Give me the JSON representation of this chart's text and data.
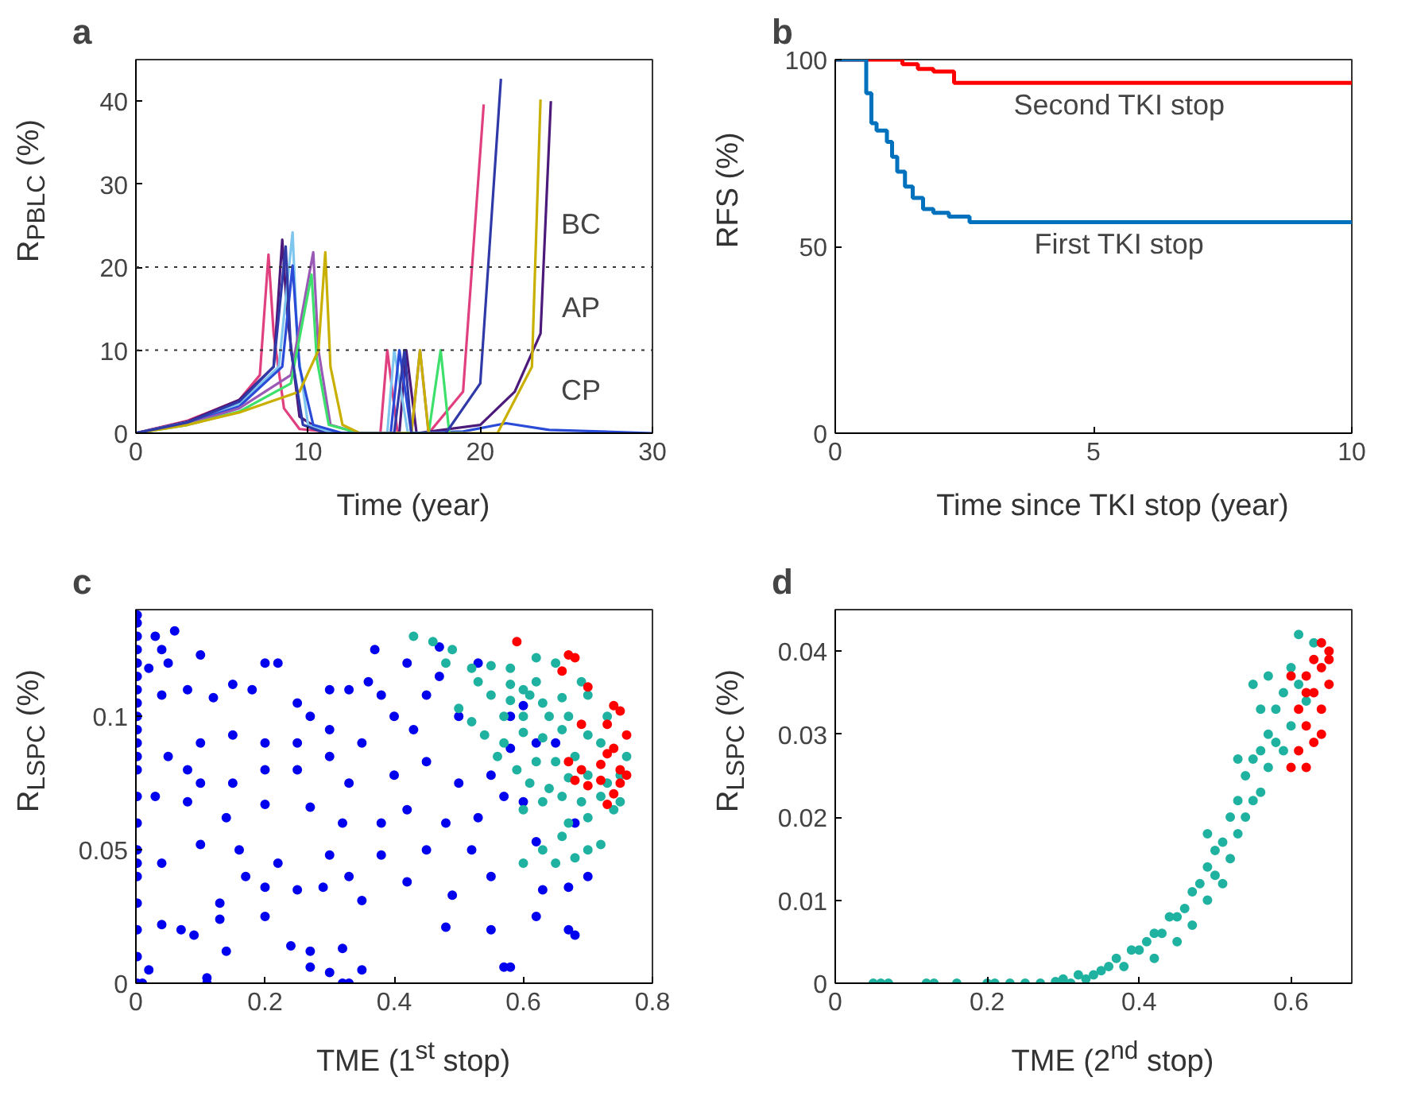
{
  "chart_data": [
    {
      "type": "line",
      "title": "a",
      "xlabel": "Time (year)",
      "ylabel": "R$_{PBLC}$ (%)",
      "xlim": [
        0,
        30
      ],
      "ylim": [
        0,
        45
      ],
      "xticks": [
        0,
        10,
        20,
        30
      ],
      "yticks": [
        0,
        10,
        20,
        30,
        40
      ],
      "line_style": "solid",
      "ref_lines": [
        {
          "axis": "y",
          "value": 10,
          "line_style": "dotted",
          "color": "#333333"
        },
        {
          "axis": "y",
          "value": 20,
          "line_style": "dotted",
          "color": "#333333"
        }
      ],
      "annotations": [
        "BC",
        "AP",
        "CP"
      ],
      "series": [
        {
          "color": "#e0407f",
          "x": [
            0,
            3,
            6,
            7.2,
            7.7,
            8.0,
            8.6,
            9.5,
            12,
            14.2,
            14.6,
            15.2,
            17,
            19,
            20.2
          ],
          "values": [
            0,
            1.5,
            4,
            7,
            21.5,
            12,
            3,
            0.5,
            0,
            0,
            10,
            0,
            0,
            5,
            39.6
          ]
        },
        {
          "color": "#4b1a7a",
          "x": [
            0,
            3,
            6,
            8,
            8.5,
            8.8,
            9.5,
            11,
            13,
            15.3,
            15.7,
            16.3,
            20,
            22,
            23.5,
            24.1
          ],
          "values": [
            0,
            1.4,
            4,
            8,
            23.3,
            14,
            2,
            0,
            0,
            0,
            10,
            0,
            1,
            5,
            12,
            40
          ]
        },
        {
          "color": "#7fc6ee",
          "x": [
            0,
            3,
            6,
            8.3,
            9.1,
            9.4,
            10,
            11.5,
            13,
            14.6,
            15.0,
            15.8,
            17
          ],
          "values": [
            0,
            1.3,
            3.5,
            8,
            24.2,
            10,
            1,
            0,
            0,
            0,
            10,
            0,
            0
          ]
        },
        {
          "color": "#2a4bd7",
          "x": [
            0,
            3,
            6,
            8.5,
            9.1,
            9.5,
            10.3,
            12,
            14,
            14.8,
            15.3,
            16,
            19,
            21.5,
            24,
            30
          ],
          "values": [
            0,
            1.2,
            3.2,
            8,
            20.2,
            8,
            1,
            0,
            0,
            0,
            10,
            0,
            0.2,
            1.2,
            0.4,
            0
          ]
        },
        {
          "color": "#9b59b6",
          "x": [
            0,
            3,
            6,
            9,
            10.3,
            10.6,
            11.3,
            13,
            16,
            16.5,
            17,
            18
          ],
          "values": [
            0,
            1.1,
            3,
            7,
            21.8,
            10,
            1,
            0,
            0,
            10,
            0,
            0
          ]
        },
        {
          "color": "#3ee06c",
          "x": [
            0,
            3,
            6,
            9,
            10.2,
            10.5,
            11.2,
            13,
            17,
            17.7,
            18.2,
            19
          ],
          "values": [
            0,
            1,
            2.6,
            6,
            19.1,
            9,
            1,
            0,
            0,
            10,
            0,
            0
          ]
        },
        {
          "color": "#c9b000",
          "x": [
            0,
            3,
            6,
            9.5,
            10.6,
            11.0,
            11.3,
            12,
            13,
            16,
            16.5,
            17,
            21,
            23,
            23.5
          ],
          "values": [
            0,
            1,
            2.5,
            5,
            10,
            21.8,
            8,
            1,
            0,
            0,
            10,
            0,
            0,
            8,
            40.2
          ]
        },
        {
          "color": "#2f3aa8",
          "x": [
            0,
            3,
            6,
            8,
            8.7,
            9,
            9.7,
            11,
            13,
            15,
            15.6,
            16,
            18,
            20,
            21.2
          ],
          "values": [
            0,
            1.3,
            3.8,
            8,
            22.5,
            10,
            1,
            0,
            0,
            0,
            10,
            0,
            0,
            6,
            42.7
          ]
        }
      ]
    },
    {
      "type": "step",
      "title": "b",
      "xlabel": "Time since TKI stop (year)",
      "ylabel": "RFS (%)",
      "xlim": [
        0,
        10
      ],
      "ylim": [
        0,
        100
      ],
      "xticks": [
        0,
        5,
        10
      ],
      "yticks": [
        0,
        50,
        100
      ],
      "legend": false,
      "series": [
        {
          "name": "Second TKI stop",
          "color": "#ff0000",
          "x": [
            0,
            1.3,
            1.6,
            1.9,
            2.3,
            10
          ],
          "values": [
            100,
            98.8,
            97.5,
            96.8,
            93.8,
            93.8
          ]
        },
        {
          "name": "First TKI stop",
          "color": "#0072bd",
          "x": [
            0,
            0.6,
            0.7,
            0.8,
            1.0,
            1.1,
            1.2,
            1.35,
            1.5,
            1.7,
            1.9,
            2.2,
            2.6,
            10
          ],
          "values": [
            100,
            91,
            83,
            81,
            78,
            74,
            70,
            66,
            63,
            60,
            59,
            58,
            56.5,
            56.5
          ]
        }
      ]
    },
    {
      "type": "scatter",
      "title": "c",
      "xlabel": "TME (1$^{st}$ stop)",
      "ylabel": "R$_{LSPC}$ (%)",
      "xlim": [
        0,
        0.8
      ],
      "ylim": [
        0,
        0.14
      ],
      "xticks": [
        0,
        0.2,
        0.4,
        0.6,
        0.8
      ],
      "yticks": [
        0,
        0.05,
        0.1
      ],
      "marker": "circle",
      "series": [
        {
          "color": "#0000ee",
          "x": [
            0.002,
            0.002,
            0.002,
            0.002,
            0.002,
            0.002,
            0.002,
            0.002,
            0.002,
            0.002,
            0.002,
            0.002,
            0.002,
            0.002,
            0.002,
            0.002,
            0.002,
            0.002,
            0.002,
            0.002,
            0.002,
            0.002,
            0.03,
            0.04,
            0.06,
            0.02,
            0.05,
            0.04,
            0.1,
            0.08,
            0.12,
            0.15,
            0.18,
            0.2,
            0.22,
            0.25,
            0.27,
            0.3,
            0.33,
            0.36,
            0.38,
            0.4,
            0.37,
            0.42,
            0.45,
            0.47,
            0.5,
            0.43,
            0.35,
            0.3,
            0.25,
            0.2,
            0.15,
            0.1,
            0.05,
            0.08,
            0.1,
            0.15,
            0.2,
            0.25,
            0.3,
            0.33,
            0.4,
            0.45,
            0.5,
            0.55,
            0.03,
            0.08,
            0.14,
            0.2,
            0.27,
            0.32,
            0.38,
            0.42,
            0.48,
            0.53,
            0.57,
            0.6,
            0.62,
            0.52,
            0.45,
            0.38,
            0.3,
            0.22,
            0.16,
            0.1,
            0.04,
            0.17,
            0.25,
            0.33,
            0.42,
            0.55,
            0.63,
            0.7,
            0.67,
            0.13,
            0.2,
            0.29,
            0.35,
            0.49,
            0.07,
            0.04,
            0.09,
            0.13,
            0.2,
            0.24,
            0.27,
            0.32,
            0.48,
            0.57,
            0.55,
            0.62,
            0.67,
            0.68,
            0.14,
            0.11,
            0.11,
            0.27,
            0.3,
            0.33,
            0.32,
            0.35,
            0.58,
            0.01,
            0.02,
            0.62,
            0.58,
            0.47,
            0.53,
            0.58,
            0.65,
            0.68,
            0.6
          ],
          "values": [
            0.138,
            0.135,
            0.13,
            0.125,
            0.12,
            0.115,
            0.11,
            0.105,
            0.1,
            0.095,
            0.09,
            0.085,
            0.08,
            0.07,
            0.06,
            0.05,
            0.045,
            0.04,
            0.03,
            0.02,
            0.01,
            0.0,
            0.13,
            0.125,
            0.132,
            0.118,
            0.12,
            0.108,
            0.123,
            0.11,
            0.107,
            0.112,
            0.11,
            0.12,
            0.12,
            0.105,
            0.1,
            0.11,
            0.11,
            0.113,
            0.108,
            0.1,
            0.125,
            0.12,
            0.108,
            0.115,
            0.1,
            0.095,
            0.09,
            0.095,
            0.09,
            0.09,
            0.093,
            0.09,
            0.085,
            0.08,
            0.075,
            0.075,
            0.08,
            0.08,
            0.085,
            0.075,
            0.078,
            0.083,
            0.075,
            0.078,
            0.07,
            0.068,
            0.062,
            0.067,
            0.066,
            0.06,
            0.06,
            0.065,
            0.06,
            0.062,
            0.07,
            0.068,
            0.053,
            0.05,
            0.05,
            0.048,
            0.048,
            0.045,
            0.05,
            0.052,
            0.045,
            0.04,
            0.035,
            0.04,
            0.038,
            0.04,
            0.035,
            0.04,
            0.036,
            0.03,
            0.036,
            0.036,
            0.031,
            0.033,
            0.02,
            0.022,
            0.018,
            0.024,
            0.025,
            0.014,
            0.012,
            0.013,
            0.021,
            0.006,
            0.02,
            0.025,
            0.02,
            0.018,
            0.012,
            0.0,
            0.002,
            0.006,
            0.004,
            0.0,
            0.0,
            0.005,
            0.006,
            0.0,
            0.005,
            0.09,
            0.1,
            0.126,
            0.12,
            0.088,
            0.09,
            0.06,
            0.104
          ]
        },
        {
          "color": "#20b2a0",
          "x": [
            0.43,
            0.46,
            0.49,
            0.48,
            0.52,
            0.55,
            0.58,
            0.62,
            0.65,
            0.62,
            0.58,
            0.53,
            0.55,
            0.58,
            0.6,
            0.61,
            0.63,
            0.66,
            0.69,
            0.7,
            0.67,
            0.64,
            0.6,
            0.57,
            0.52,
            0.5,
            0.54,
            0.57,
            0.6,
            0.63,
            0.66,
            0.7,
            0.73,
            0.72,
            0.68,
            0.65,
            0.62,
            0.59,
            0.56,
            0.61,
            0.64,
            0.67,
            0.7,
            0.73,
            0.75,
            0.76,
            0.72,
            0.69,
            0.66,
            0.74,
            0.75,
            0.7,
            0.67,
            0.63,
            0.6,
            0.72,
            0.7,
            0.68,
            0.65,
            0.63,
            0.6,
            0.66
          ],
          "values": [
            0.13,
            0.128,
            0.125,
            0.12,
            0.118,
            0.119,
            0.118,
            0.122,
            0.12,
            0.113,
            0.112,
            0.113,
            0.108,
            0.106,
            0.11,
            0.108,
            0.105,
            0.107,
            0.113,
            0.108,
            0.1,
            0.1,
            0.1,
            0.1,
            0.098,
            0.103,
            0.093,
            0.09,
            0.094,
            0.092,
            0.095,
            0.093,
            0.1,
            0.09,
            0.085,
            0.083,
            0.083,
            0.08,
            0.085,
            0.075,
            0.073,
            0.077,
            0.078,
            0.075,
            0.078,
            0.085,
            0.07,
            0.068,
            0.07,
            0.065,
            0.068,
            0.062,
            0.06,
            0.068,
            0.065,
            0.052,
            0.05,
            0.047,
            0.045,
            0.05,
            0.045,
            0.055
          ]
        },
        {
          "color": "#ff0000",
          "x": [
            0.59,
            0.67,
            0.68,
            0.66,
            0.7,
            0.74,
            0.75,
            0.69,
            0.73,
            0.76,
            0.74,
            0.73,
            0.72,
            0.67,
            0.69,
            0.68,
            0.75,
            0.76,
            0.7,
            0.74,
            0.73,
            0.75,
            0.72
          ],
          "values": [
            0.128,
            0.123,
            0.122,
            0.117,
            0.111,
            0.104,
            0.102,
            0.097,
            0.097,
            0.093,
            0.088,
            0.086,
            0.082,
            0.083,
            0.08,
            0.076,
            0.08,
            0.078,
            0.074,
            0.071,
            0.067,
            0.075,
            0.076
          ]
        }
      ]
    },
    {
      "type": "scatter",
      "title": "d",
      "xlabel": "TME (2$^{nd}$ stop)",
      "ylabel": "R$_{LSPC}$ (%)",
      "xlim": [
        0,
        0.68
      ],
      "ylim": [
        0,
        0.045
      ],
      "xticks": [
        0,
        0.2,
        0.4,
        0.6
      ],
      "yticks": [
        0,
        0.01,
        0.02,
        0.03,
        0.04
      ],
      "marker": "circle",
      "series": [
        {
          "color": "#20b2a0",
          "x": [
            0.05,
            0.06,
            0.07,
            0.12,
            0.13,
            0.16,
            0.2,
            0.21,
            0.23,
            0.25,
            0.27,
            0.29,
            0.3,
            0.31,
            0.32,
            0.33,
            0.34,
            0.35,
            0.36,
            0.37,
            0.38,
            0.39,
            0.4,
            0.41,
            0.42,
            0.42,
            0.43,
            0.44,
            0.45,
            0.45,
            0.46,
            0.47,
            0.47,
            0.48,
            0.49,
            0.49,
            0.5,
            0.5,
            0.51,
            0.51,
            0.52,
            0.52,
            0.53,
            0.53,
            0.54,
            0.54,
            0.55,
            0.55,
            0.56,
            0.56,
            0.57,
            0.57,
            0.58,
            0.58,
            0.59,
            0.59,
            0.6,
            0.6,
            0.61,
            0.61,
            0.62,
            0.63,
            0.55,
            0.53,
            0.49,
            0.56,
            0.57
          ],
          "values": [
            0,
            0,
            0,
            0,
            0,
            0,
            0,
            0,
            0,
            0,
            0,
            0.0002,
            0.0005,
            0,
            0.001,
            0.0005,
            0.001,
            0.0015,
            0.002,
            0.003,
            0.002,
            0.004,
            0.004,
            0.005,
            0.003,
            0.006,
            0.006,
            0.008,
            0.005,
            0.008,
            0.009,
            0.011,
            0.007,
            0.012,
            0.01,
            0.014,
            0.013,
            0.016,
            0.012,
            0.017,
            0.015,
            0.02,
            0.018,
            0.022,
            0.02,
            0.025,
            0.022,
            0.027,
            0.023,
            0.028,
            0.026,
            0.03,
            0.029,
            0.033,
            0.035,
            0.028,
            0.038,
            0.031,
            0.036,
            0.042,
            0.034,
            0.041,
            0.036,
            0.027,
            0.018,
            0.033,
            0.037
          ]
        },
        {
          "color": "#ff0000",
          "x": [
            0.6,
            0.62,
            0.61,
            0.62,
            0.63,
            0.62,
            0.61,
            0.64,
            0.63,
            0.64,
            0.65,
            0.65,
            0.64,
            0.65,
            0.63,
            0.64,
            0.6,
            0.62
          ],
          "values": [
            0.037,
            0.035,
            0.033,
            0.031,
            0.029,
            0.026,
            0.028,
            0.03,
            0.039,
            0.041,
            0.04,
            0.039,
            0.038,
            0.036,
            0.035,
            0.033,
            0.026,
            0.037
          ]
        }
      ]
    }
  ]
}
